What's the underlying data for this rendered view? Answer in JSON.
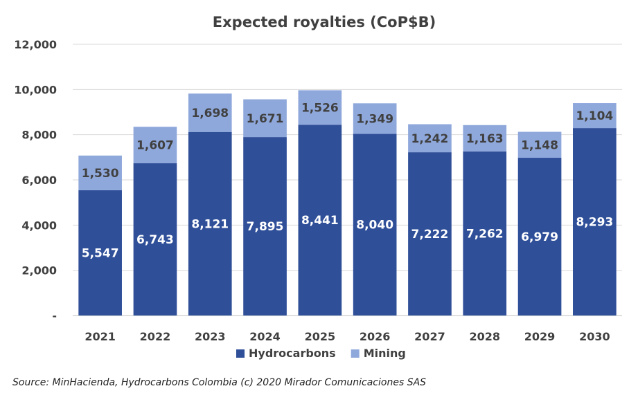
{
  "chart_data": {
    "type": "bar",
    "stacked": true,
    "title": "Expected royalties (CoP$B)",
    "categories": [
      "2021",
      "2022",
      "2023",
      "2024",
      "2025",
      "2026",
      "2027",
      "2028",
      "2029",
      "2030"
    ],
    "series": [
      {
        "name": "Hydrocarbons",
        "color": "#2f4f99",
        "values": [
          5547,
          6743,
          8121,
          7895,
          8441,
          8040,
          7222,
          7262,
          6979,
          8293
        ],
        "labels": [
          "5,547",
          "6,743",
          "8,121",
          "7,895",
          "8,441",
          "8,040",
          "7,222",
          "7,262",
          "6,979",
          "8,293"
        ]
      },
      {
        "name": "Mining",
        "color": "#8fa8dc",
        "values": [
          1530,
          1607,
          1698,
          1671,
          1526,
          1349,
          1242,
          1163,
          1148,
          1104
        ],
        "labels": [
          "1,530",
          "1,607",
          "1,698",
          "1,671",
          "1,526",
          "1,349",
          "1,242",
          "1,163",
          "1,148",
          "1,104"
        ]
      }
    ],
    "ylim": [
      0,
      12000
    ],
    "yticks": [
      0,
      2000,
      4000,
      6000,
      8000,
      10000,
      12000
    ],
    "ytick_labels": [
      "-",
      "2,000",
      "4,000",
      "6,000",
      "8,000",
      "10,000",
      "12,000"
    ],
    "grid": true,
    "legend": "bottom"
  },
  "source_text": "Source:  MinHacienda, Hydrocarbons Colombia (c) 2020 Mirador Comunicaciones SAS"
}
